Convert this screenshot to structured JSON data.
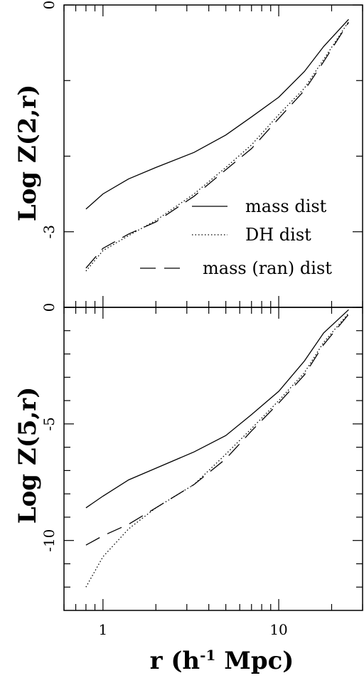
{
  "chart_data": [
    {
      "type": "line",
      "ylabel": "Log  Z(2,r)",
      "xscale": "log",
      "xlim": [
        0.6,
        30
      ],
      "ylim": [
        -4,
        0
      ],
      "yticks": [
        0,
        -1,
        -2,
        -3,
        -4
      ],
      "ytick_labels": [
        {
          "value": 0,
          "label": "0"
        },
        {
          "value": -3,
          "label": "-3"
        }
      ],
      "legend_position": "lower-right",
      "series": [
        {
          "name": "mass dist",
          "style": "solid",
          "x": [
            0.8,
            1.0,
            1.4,
            2.0,
            3.3,
            5.0,
            7.0,
            10.0,
            14.0,
            18.0,
            25.0
          ],
          "y": [
            -2.7,
            -2.5,
            -2.3,
            -2.15,
            -1.95,
            -1.72,
            -1.48,
            -1.22,
            -0.88,
            -0.55,
            -0.19
          ]
        },
        {
          "name": "DH dist",
          "style": "dotted",
          "x": [
            0.8,
            1.0,
            1.4,
            2.0,
            3.3,
            5.0,
            7.0,
            10.0,
            14.0,
            18.0,
            25.0
          ],
          "y": [
            -3.52,
            -3.25,
            -3.05,
            -2.85,
            -2.5,
            -2.15,
            -1.85,
            -1.45,
            -1.1,
            -0.72,
            -0.22
          ]
        },
        {
          "name": "mass (ran) dist",
          "style": "long-dash",
          "x": [
            0.8,
            1.0,
            1.4,
            2.0,
            3.3,
            5.0,
            7.0,
            10.0,
            14.0,
            18.0,
            25.0
          ],
          "y": [
            -3.48,
            -3.22,
            -3.03,
            -2.87,
            -2.53,
            -2.18,
            -1.9,
            -1.5,
            -1.13,
            -0.75,
            -0.23
          ]
        }
      ]
    },
    {
      "type": "line",
      "ylabel": "Log  Z(5,r)",
      "xlabel": "r  (h-1  Mpc)",
      "xscale": "log",
      "xlim": [
        0.6,
        30
      ],
      "ylim": [
        -13,
        0
      ],
      "yticks": [
        0,
        -1,
        -2,
        -3,
        -4,
        -5,
        -6,
        -7,
        -8,
        -9,
        -10,
        -11,
        -12
      ],
      "ytick_labels": [
        {
          "value": 0,
          "label": "0"
        },
        {
          "value": -5,
          "label": "-5"
        },
        {
          "value": -10,
          "label": "-10"
        }
      ],
      "xtick_labels": [
        {
          "value": 1,
          "label": "1"
        },
        {
          "value": 10,
          "label": "10"
        }
      ],
      "series": [
        {
          "name": "mass dist",
          "style": "solid",
          "x": [
            0.8,
            1.0,
            1.4,
            2.0,
            3.3,
            5.0,
            7.0,
            10.0,
            14.0,
            18.0,
            25.0
          ],
          "y": [
            -8.6,
            -8.1,
            -7.4,
            -6.9,
            -6.2,
            -5.5,
            -4.6,
            -3.6,
            -2.3,
            -1.1,
            -0.1
          ]
        },
        {
          "name": "DH dist",
          "style": "dotted",
          "x": [
            0.8,
            1.0,
            1.4,
            2.0,
            3.3,
            5.0,
            7.0,
            10.0,
            14.0,
            18.0,
            25.0
          ],
          "y": [
            -12.0,
            -10.7,
            -9.5,
            -8.6,
            -7.6,
            -6.3,
            -5.2,
            -4.0,
            -2.8,
            -1.5,
            -0.25
          ]
        },
        {
          "name": "mass (ran) dist",
          "style": "long-dash",
          "x": [
            0.8,
            1.0,
            1.4,
            2.0,
            3.3,
            5.0,
            7.0,
            10.0,
            14.0,
            18.0,
            25.0
          ],
          "y": [
            -10.2,
            -9.8,
            -9.3,
            -8.6,
            -7.6,
            -6.5,
            -5.3,
            -4.1,
            -2.9,
            -1.6,
            -0.3
          ]
        }
      ]
    }
  ],
  "legend": {
    "entries": [
      "mass dist",
      "DH dist",
      "mass (ran) dist"
    ]
  },
  "labels": {
    "top_ylabel": "Log  Z(2,r)",
    "bottom_ylabel": "Log  Z(5,r)",
    "xlabel_prefix": "r  (h",
    "xlabel_sup": "-1",
    "xlabel_suffix": "  Mpc)"
  }
}
